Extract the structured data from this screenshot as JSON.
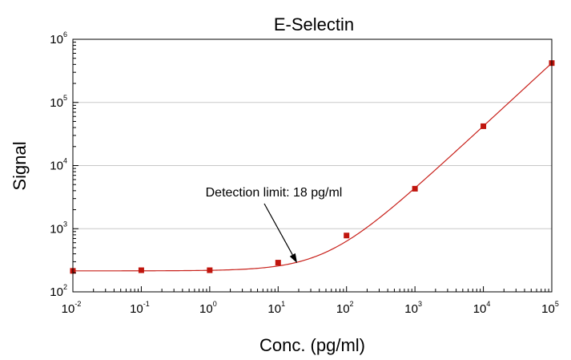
{
  "chart_data": {
    "type": "scatter",
    "title": "E-Selectin",
    "xlabel": "Conc. (pg/ml)",
    "ylabel": "Signal",
    "x_scale": "log",
    "y_scale": "log",
    "xlim": [
      0.01,
      100000
    ],
    "ylim": [
      100,
      1000000
    ],
    "x_ticks": [
      {
        "base": "10",
        "exp": "-2"
      },
      {
        "base": "10",
        "exp": "-1"
      },
      {
        "base": "10",
        "exp": "0"
      },
      {
        "base": "10",
        "exp": "1"
      },
      {
        "base": "10",
        "exp": "2"
      },
      {
        "base": "10",
        "exp": "3"
      },
      {
        "base": "10",
        "exp": "4"
      },
      {
        "base": "10",
        "exp": "5"
      }
    ],
    "y_ticks": [
      {
        "base": "10",
        "exp": "2"
      },
      {
        "base": "10",
        "exp": "3"
      },
      {
        "base": "10",
        "exp": "4"
      },
      {
        "base": "10",
        "exp": "5"
      },
      {
        "base": "10",
        "exp": "6"
      }
    ],
    "grid": "horizontal",
    "series": [
      {
        "x": [
          0.01,
          0.1,
          1,
          10,
          100,
          1000,
          10000,
          100000
        ],
        "y": [
          215,
          220,
          220,
          290,
          780,
          4300,
          42000,
          420000
        ]
      }
    ],
    "fit_curve": {
      "baseline": 215,
      "slope": 4.2
    },
    "annotations": [
      {
        "text": "Detection limit: 18 pg/ml",
        "target_x": 18,
        "target_y": 268
      }
    ],
    "colors": {
      "points": "#c0150d",
      "curve": "#c8201a",
      "grid": "#c8c8c8",
      "axis": "#000000"
    }
  }
}
